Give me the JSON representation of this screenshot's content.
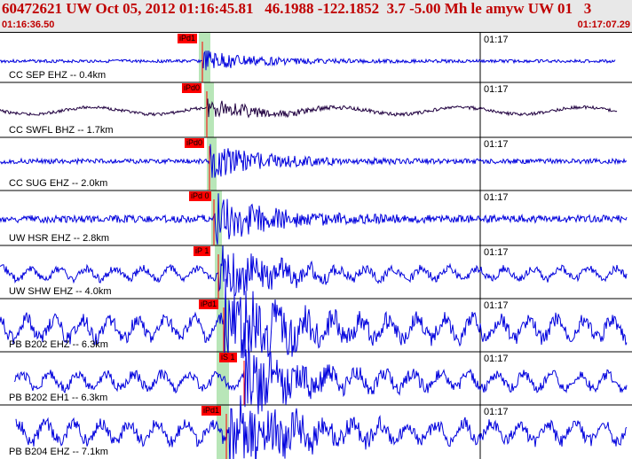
{
  "header": {
    "title": "60472621 UW Oct 05, 2012 01:16:45.81   46.1988 -122.1852  3.7 -5.00 Mh le amyw UW 01   3",
    "start_time": "01:16:36.50",
    "end_time": "01:17:07.29"
  },
  "panels": [
    {
      "label": "CC SEP EHZ -- 0.4km",
      "pick": "iPd1",
      "tick": "01:17",
      "color": "#0000dd"
    },
    {
      "label": "CC SWFL BHZ -- 1.7km",
      "pick": "iPd0",
      "tick": "01:17",
      "color": "#200040"
    },
    {
      "label": "CC SUG EHZ -- 2.0km",
      "pick": "iPd0",
      "tick": "01:17",
      "color": "#0000dd"
    },
    {
      "label": "UW HSR EHZ -- 2.8km",
      "pick": "iPd 0",
      "tick": "01:17",
      "color": "#0000dd"
    },
    {
      "label": "UW SHW EHZ -- 4.0km",
      "pick": "iP 1",
      "tick": "01:17",
      "color": "#0000dd"
    },
    {
      "label": "PB B202 EHZ -- 6.3km",
      "pick": "iPd1",
      "tick": "01:17",
      "color": "#0000dd"
    },
    {
      "label": "PB B202 EH1 -- 6.3km",
      "pick": "iS 1",
      "tick": "01:17",
      "color": "#0000dd"
    },
    {
      "label": "PB B204 EHZ -- 7.1km",
      "pick": "iPd1",
      "tick": "01:17",
      "color": "#0000dd"
    }
  ],
  "colors": {
    "accent": "#c00000",
    "pick": "#ff0000",
    "window": "#b8e6b8",
    "trace": "#0000dd"
  }
}
